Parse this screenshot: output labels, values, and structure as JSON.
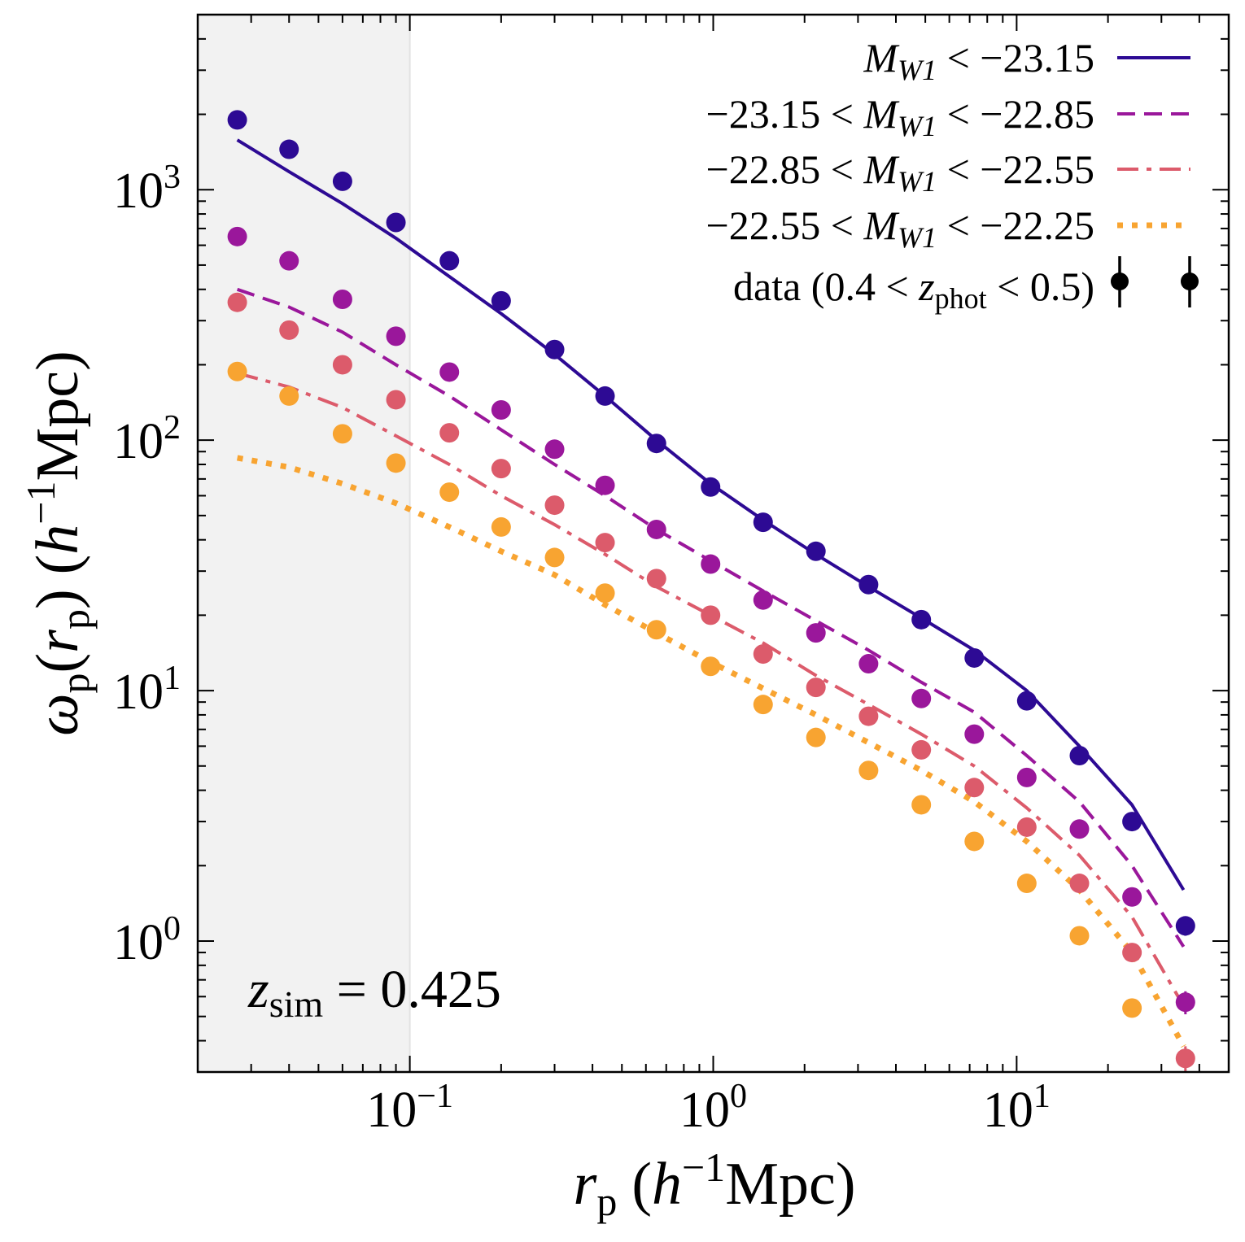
{
  "chart_data": {
    "type": "line",
    "xscale": "log",
    "yscale": "log",
    "xlim": [
      0.02,
      50
    ],
    "ylim": [
      0.3,
      5000
    ],
    "shaded_region": {
      "x_from": 0.02,
      "x_to": 0.1,
      "color": "#f2f2f2"
    },
    "xlabel": {
      "base": "r",
      "sub": "p",
      "unit_pre": "(",
      "h": "h",
      "exp": "−1",
      "unit": "Mpc)"
    },
    "ylabel": {
      "base": "ω",
      "sub": "p",
      "arg_open": "(",
      "arg": "r",
      "arg_sub": "p",
      "arg_close": ")",
      "unit_pre": "(",
      "h": "h",
      "exp": "−1",
      "unit": "Mpc)"
    },
    "x_ticks": [
      {
        "value": 0.1,
        "base": "10",
        "exp": "−1"
      },
      {
        "value": 1,
        "base": "10",
        "exp": "0"
      },
      {
        "value": 10,
        "base": "10",
        "exp": "1"
      }
    ],
    "y_ticks": [
      {
        "value": 1,
        "base": "10",
        "exp": "0"
      },
      {
        "value": 10,
        "base": "10",
        "exp": "1"
      },
      {
        "value": 100,
        "base": "10",
        "exp": "2"
      },
      {
        "value": 1000,
        "base": "10",
        "exp": "3"
      }
    ],
    "annotation": {
      "base": "z",
      "sub": "sim",
      "rest": " = 0.425"
    },
    "x": [
      0.027,
      0.04,
      0.06,
      0.09,
      0.135,
      0.2,
      0.3,
      0.44,
      0.65,
      0.98,
      1.46,
      2.18,
      3.25,
      4.85,
      7.25,
      10.8,
      16.1,
      24.0,
      36.0
    ],
    "model_x": [
      0.027,
      0.04,
      0.06,
      0.09,
      0.135,
      0.2,
      0.3,
      0.44,
      0.65,
      0.98,
      1.46,
      2.18,
      3.25,
      4.85,
      7.25,
      10.8,
      16.1,
      24.0,
      35.5
    ],
    "series": [
      {
        "name": "M_W1 < −23.15",
        "legend": {
          "pre": "",
          "M": "M",
          "sub": "W1",
          "post": " < −23.15"
        },
        "color": "#2d0a94",
        "dash": "solid",
        "model": [
          1580,
          1180,
          880,
          640,
          450,
          320,
          220,
          150,
          100,
          67,
          48,
          35,
          26,
          19.5,
          14.5,
          10,
          6,
          3.5,
          1.6
        ],
        "points": [
          1900,
          1450,
          1080,
          740,
          520,
          360,
          230,
          150,
          97,
          65,
          47,
          36,
          26.5,
          19.2,
          13.5,
          9.1,
          5.5,
          3.0,
          1.15
        ],
        "errors": [
          0,
          0,
          0,
          0,
          0,
          0,
          0,
          0,
          0,
          0,
          0,
          0,
          0,
          0,
          0,
          0,
          0,
          0,
          0.1
        ]
      },
      {
        "name": "−23.15 < M_W1 < −22.85",
        "legend": {
          "pre": "−23.15 < ",
          "M": "M",
          "sub": "W1",
          "post": " < −22.85"
        },
        "color": "#9a179b",
        "dash": "dashed",
        "model": [
          400,
          340,
          270,
          200,
          150,
          110,
          80,
          60,
          44,
          33,
          25,
          19,
          14.5,
          10.8,
          8.2,
          5.5,
          3.6,
          2.0,
          0.95
        ],
        "points": [
          650,
          520,
          365,
          260,
          187,
          132,
          92,
          66,
          44,
          32,
          23,
          17,
          12.8,
          9.3,
          6.7,
          4.5,
          2.8,
          1.5,
          0.57
        ],
        "errors": [
          0,
          0,
          0,
          0,
          0,
          0,
          0,
          0,
          0,
          0,
          0,
          0,
          0,
          0,
          0,
          0,
          0,
          0,
          0.06
        ]
      },
      {
        "name": "−22.85 < M_W1 < −22.55",
        "legend": {
          "pre": "−22.85 < ",
          "M": "M",
          "sub": "W1",
          "post": " < −22.55"
        },
        "color": "#dc5b6b",
        "dash": "dashdot",
        "model": [
          185,
          163,
          135,
          104,
          80,
          60,
          46,
          35,
          26,
          20,
          15.5,
          11.5,
          8.8,
          6.7,
          5.0,
          3.4,
          2.2,
          1.25,
          0.55
        ],
        "points": [
          355,
          275,
          200,
          145,
          107,
          77,
          55,
          39,
          28,
          20,
          14,
          10.3,
          7.9,
          5.8,
          4.1,
          2.85,
          1.7,
          0.9,
          0.34
        ],
        "errors": [
          0,
          0,
          0,
          0,
          0,
          0,
          0,
          0,
          0,
          0,
          0,
          0,
          0,
          0,
          0,
          0,
          0,
          0,
          0.04
        ]
      },
      {
        "name": "−22.55 < M_W1 < −22.25",
        "legend": {
          "pre": "−22.55 < ",
          "M": "M",
          "sub": "W1",
          "post": " < −22.25"
        },
        "color": "#f8a431",
        "dash": "dotted",
        "model": [
          85,
          78,
          67,
          56,
          45,
          36,
          29,
          22,
          17,
          13,
          10.2,
          8,
          6.2,
          4.8,
          3.6,
          2.5,
          1.6,
          0.9,
          0.38
        ],
        "points": [
          188,
          150,
          106,
          81,
          62,
          45,
          34,
          24.5,
          17.5,
          12.5,
          8.8,
          6.5,
          4.8,
          3.5,
          2.5,
          1.7,
          1.05,
          0.54,
          null
        ],
        "errors": [
          0,
          0,
          0,
          0,
          0,
          0,
          0,
          0,
          0,
          0,
          0,
          0,
          0,
          0,
          0,
          0,
          0,
          0.04,
          0
        ]
      }
    ],
    "data_legend": {
      "pre": "data (0.4 < ",
      "z": "z",
      "sub": "phot",
      "post": " < 0.5)"
    }
  }
}
